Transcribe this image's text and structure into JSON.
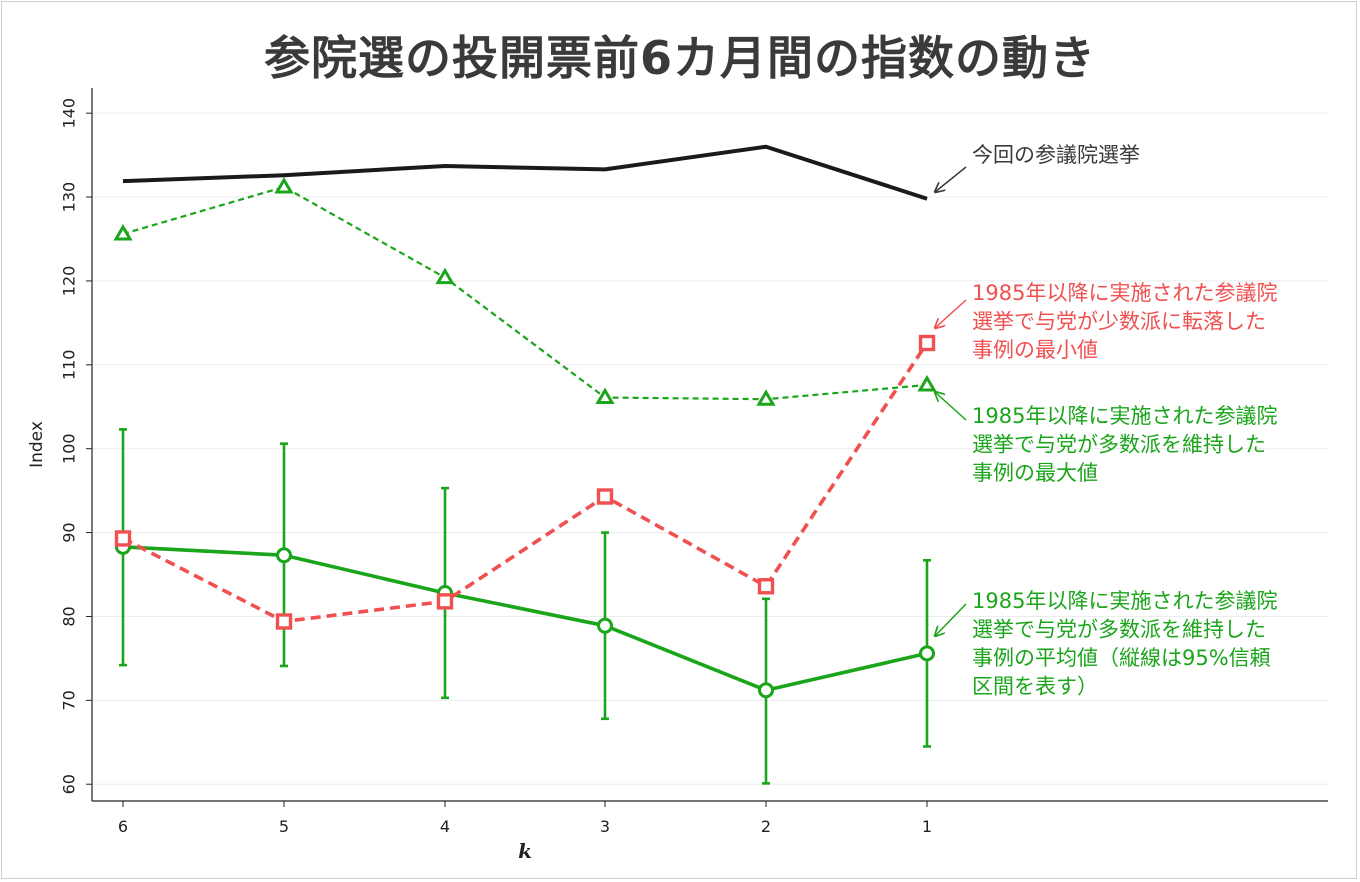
{
  "title": "参院選の投開票前6カ月間の指数の動き",
  "chart_data": {
    "type": "line",
    "xlabel": "k",
    "ylabel": "Index",
    "x": [
      6,
      5,
      4,
      3,
      2,
      1
    ],
    "x_ticks": [
      "6",
      "5",
      "4",
      "3",
      "2",
      "1"
    ],
    "y_ticks": [
      "60",
      "70",
      "80",
      "90",
      "100",
      "110",
      "120",
      "130",
      "140"
    ],
    "ylim": [
      58,
      143
    ],
    "grid": "horizontal",
    "series": [
      {
        "key": "current",
        "color": "#1a1a1a",
        "line": "solid",
        "marker": "none",
        "values": [
          131.9,
          132.6,
          133.7,
          133.3,
          136.0,
          129.8
        ]
      },
      {
        "key": "majority_max",
        "color": "#1aa51a",
        "line": "dashed",
        "marker": "triangle",
        "values": [
          125.6,
          131.2,
          120.4,
          106.1,
          105.9,
          107.6
        ]
      },
      {
        "key": "minority_min",
        "color": "#f05050",
        "line": "dashed",
        "marker": "square",
        "values": [
          89.3,
          79.4,
          81.8,
          94.3,
          83.6,
          112.6
        ]
      },
      {
        "key": "majority_mean",
        "color": "#1aa51a",
        "line": "solid",
        "marker": "circle",
        "values": [
          88.3,
          87.3,
          82.8,
          78.9,
          71.2,
          75.6
        ],
        "ci_low": [
          74.2,
          74.1,
          70.3,
          67.8,
          60.1,
          64.5
        ],
        "ci_high": [
          102.3,
          100.6,
          95.3,
          90.0,
          82.1,
          86.7
        ]
      }
    ],
    "annotations": [
      {
        "key": "current",
        "color": "#3a3a3a",
        "lines": [
          "今回の参議院選挙"
        ]
      },
      {
        "key": "minority_min",
        "color": "#f05050",
        "lines": [
          "1985年以降に実施された参議院",
          "選挙で与党が少数派に転落した",
          "事例の最小値"
        ]
      },
      {
        "key": "majority_max",
        "color": "#1aa51a",
        "lines": [
          "1985年以降に実施された参議院",
          "選挙で与党が多数派を維持した",
          "事例の最大値"
        ]
      },
      {
        "key": "majority_mean",
        "color": "#1aa51a",
        "lines": [
          "1985年以降に実施された参議院",
          "選挙で与党が多数派を維持した",
          "事例の平均値（縦線は95%信頼",
          "区間を表す）"
        ]
      }
    ]
  }
}
